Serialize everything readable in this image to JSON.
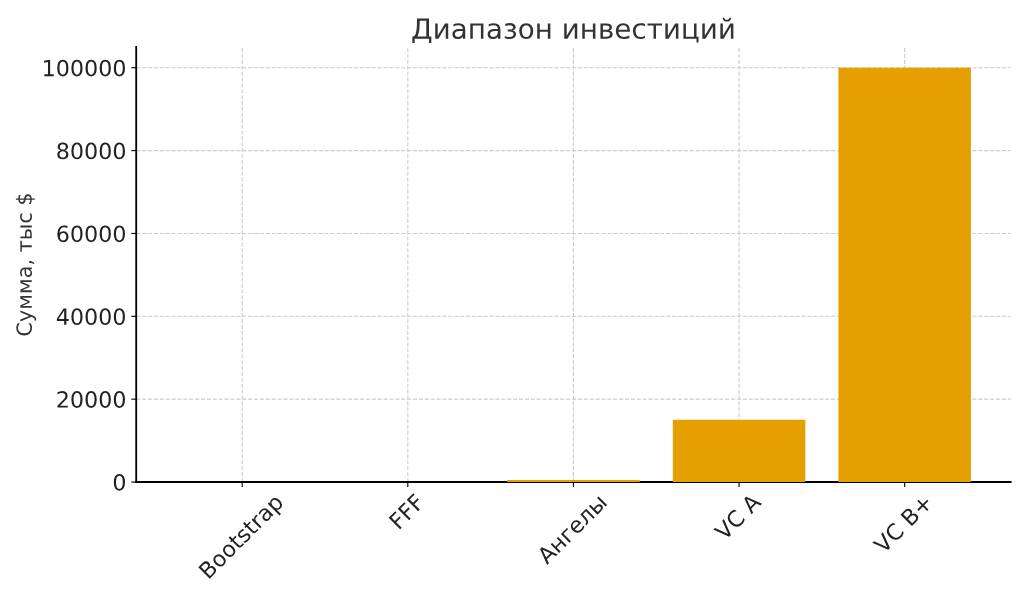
{
  "chart_data": {
    "type": "bar",
    "title": "Диапазон инвестиций",
    "ylabel": "Сумма, тыс $",
    "categories": [
      "Bootstrap",
      "FFF",
      "Ангелы",
      "VC A",
      "VC B+"
    ],
    "values": [
      0,
      0,
      500,
      15000,
      100000
    ],
    "color": "#e69f00",
    "ylim": [
      0,
      105000
    ],
    "yticks": [
      0,
      20000,
      40000,
      60000,
      80000,
      100000
    ],
    "grid": true
  }
}
